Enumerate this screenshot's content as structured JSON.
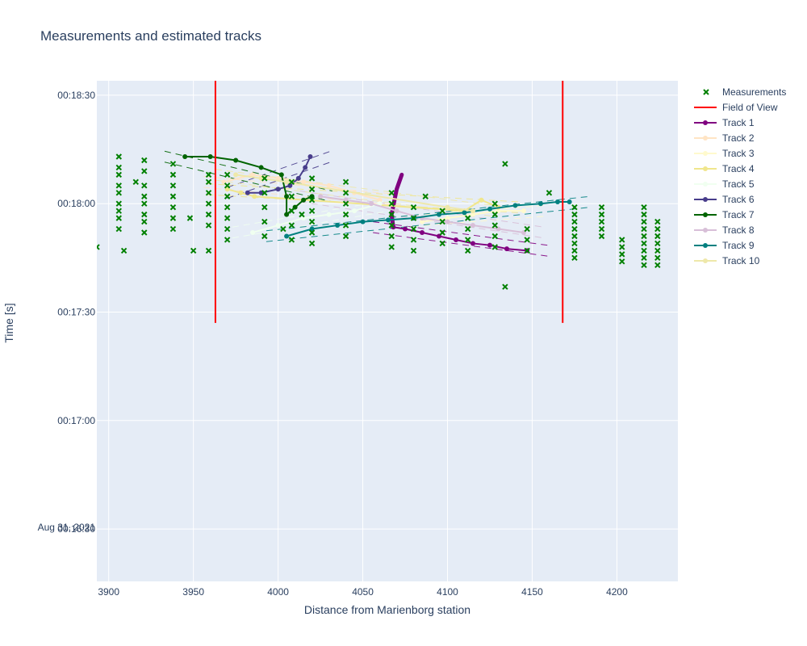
{
  "chart_data": {
    "type": "scatter",
    "title": "Measurements and estimated tracks",
    "xlabel": "Distance from Marienborg station",
    "ylabel": "Time [s]",
    "xlim": [
      3893,
      4236
    ],
    "ylim_seconds": [
      975.5,
      1114
    ],
    "x_ticks": [
      "3900",
      "3950",
      "4000",
      "4050",
      "4100",
      "4150",
      "4200"
    ],
    "y_ticks": [
      "00:16:30",
      "00:17:00",
      "00:17:30",
      "00:18:00",
      "00:18:30"
    ],
    "y_date_label": "Aug 31, 2021",
    "grid": true,
    "legend_position": "right",
    "field_of_view": {
      "name": "Field of View",
      "x": [
        3963,
        4168
      ],
      "y_seconds": [
        1047,
        1114
      ],
      "color": "#ff0000"
    },
    "measurements": {
      "name": "Measurements",
      "color": "#008000",
      "columns": [
        {
          "x": 3906,
          "y": [
            1073,
            1076,
            1078,
            1080,
            1083,
            1085,
            1088,
            1090,
            1093
          ]
        },
        {
          "x": 3921,
          "y": [
            1072,
            1075,
            1077,
            1080,
            1082,
            1085,
            1089,
            1092
          ]
        },
        {
          "x": 3938,
          "y": [
            1073,
            1076,
            1079,
            1082,
            1085,
            1088,
            1091
          ]
        },
        {
          "x": 3959,
          "y": [
            1074,
            1077,
            1080,
            1083,
            1086,
            1088
          ]
        },
        {
          "x": 3970,
          "y": [
            1070,
            1073,
            1076,
            1079,
            1082,
            1085,
            1088
          ]
        },
        {
          "x": 3992,
          "y": [
            1071,
            1075,
            1079,
            1083,
            1087
          ]
        },
        {
          "x": 4008,
          "y": [
            1070,
            1074,
            1078,
            1082,
            1086
          ]
        },
        {
          "x": 4020,
          "y": [
            1069,
            1072,
            1075,
            1078,
            1081,
            1084,
            1087
          ]
        },
        {
          "x": 4040,
          "y": [
            1071,
            1074,
            1077,
            1080,
            1083,
            1086
          ]
        },
        {
          "x": 4067,
          "y": [
            1068,
            1071,
            1074,
            1077,
            1080,
            1083
          ]
        },
        {
          "x": 4080,
          "y": [
            1067,
            1070,
            1073,
            1076,
            1079
          ]
        },
        {
          "x": 4097,
          "y": [
            1069,
            1072,
            1075,
            1078
          ]
        },
        {
          "x": 4112,
          "y": [
            1067,
            1070,
            1073,
            1076
          ]
        },
        {
          "x": 4128,
          "y": [
            1068,
            1071,
            1074,
            1077,
            1080
          ]
        },
        {
          "x": 4147,
          "y": [
            1067,
            1070,
            1073
          ]
        },
        {
          "x": 4175,
          "y": [
            1065,
            1067,
            1069,
            1071,
            1073,
            1075,
            1077,
            1079
          ]
        },
        {
          "x": 4191,
          "y": [
            1071,
            1073,
            1075,
            1077,
            1079
          ]
        },
        {
          "x": 4203,
          "y": [
            1064,
            1066,
            1068,
            1070
          ]
        },
        {
          "x": 4216,
          "y": [
            1063,
            1065,
            1067,
            1069,
            1071,
            1073,
            1075,
            1077,
            1079
          ]
        },
        {
          "x": 4224,
          "y": [
            1063,
            1065,
            1067,
            1069,
            1071,
            1073,
            1075
          ]
        }
      ],
      "extra_points": [
        {
          "x": 3893,
          "y": 1068
        },
        {
          "x": 3909,
          "y": 1067
        },
        {
          "x": 3948,
          "y": 1076
        },
        {
          "x": 3950,
          "y": 1067
        },
        {
          "x": 3959,
          "y": 1067
        },
        {
          "x": 3916,
          "y": 1086
        },
        {
          "x": 4134,
          "y": 1091
        },
        {
          "x": 4134,
          "y": 1057
        },
        {
          "x": 4003,
          "y": 1073
        },
        {
          "x": 4014,
          "y": 1077
        },
        {
          "x": 4087,
          "y": 1082
        },
        {
          "x": 4160,
          "y": 1083
        }
      ]
    },
    "tracks": [
      {
        "name": "Track 1",
        "color": "#800080",
        "points": [
          [
            4068,
            1073.5
          ],
          [
            4075,
            1073
          ],
          [
            4085,
            1072
          ],
          [
            4095,
            1071
          ],
          [
            4105,
            1070
          ],
          [
            4115,
            1069
          ],
          [
            4125,
            1068.5
          ],
          [
            4135,
            1067.5
          ],
          [
            4147,
            1067
          ]
        ],
        "hook": [
          [
            4068,
            1073.5
          ],
          [
            4067,
            1077
          ],
          [
            4070,
            1084
          ],
          [
            4073,
            1088
          ]
        ]
      },
      {
        "name": "Track 2",
        "color": "#ffe4c4",
        "points": [
          [
            3968,
            1086
          ],
          [
            3985,
            1088
          ],
          [
            4000,
            1087
          ],
          [
            4015,
            1086
          ],
          [
            4030,
            1085
          ],
          [
            4045,
            1083
          ],
          [
            4060,
            1081
          ]
        ]
      },
      {
        "name": "Track 3",
        "color": "#fffacd",
        "points": [
          [
            4085,
            1075
          ],
          [
            4100,
            1076
          ],
          [
            4115,
            1077
          ],
          [
            4130,
            1078
          ],
          [
            4145,
            1078
          ]
        ]
      },
      {
        "name": "Track 4",
        "color": "#f0e68c",
        "points": [
          [
            3970,
            1084
          ],
          [
            3978,
            1083
          ],
          [
            3986,
            1082
          ],
          [
            4110,
            1078
          ],
          [
            4120,
            1081
          ],
          [
            4130,
            1079
          ]
        ]
      },
      {
        "name": "Track 5",
        "color": "#f0fff0",
        "points": [
          [
            3985,
            1072
          ],
          [
            4000,
            1074
          ],
          [
            4015,
            1076
          ],
          [
            4030,
            1077
          ],
          [
            4045,
            1078
          ],
          [
            4060,
            1080
          ]
        ]
      },
      {
        "name": "Track 6",
        "color": "#483d8b",
        "points": [
          [
            3982,
            1083
          ],
          [
            3990,
            1083
          ],
          [
            4000,
            1084
          ],
          [
            4007,
            1085
          ],
          [
            4012,
            1087
          ],
          [
            4016,
            1090
          ],
          [
            4019,
            1093
          ]
        ]
      },
      {
        "name": "Track 7",
        "color": "#006400",
        "points": [
          [
            3945,
            1093
          ],
          [
            3960,
            1093
          ],
          [
            3975,
            1092
          ],
          [
            3990,
            1090
          ],
          [
            4002,
            1088
          ],
          [
            4005,
            1082
          ],
          [
            4005,
            1077
          ],
          [
            4010,
            1079
          ],
          [
            4015,
            1081
          ],
          [
            4020,
            1082
          ]
        ]
      },
      {
        "name": "Track 8",
        "color": "#d8bfd8",
        "points": [
          [
            4025,
            1082
          ],
          [
            4040,
            1081
          ],
          [
            4055,
            1080
          ],
          [
            4070,
            1078
          ],
          [
            4085,
            1076
          ],
          [
            4100,
            1075
          ],
          [
            4115,
            1074
          ],
          [
            4130,
            1073
          ],
          [
            4145,
            1072
          ]
        ]
      },
      {
        "name": "Track 9",
        "color": "#008080",
        "points": [
          [
            4005,
            1071
          ],
          [
            4020,
            1073
          ],
          [
            4035,
            1074
          ],
          [
            4050,
            1075
          ],
          [
            4065,
            1075.5
          ],
          [
            4080,
            1076
          ],
          [
            4095,
            1077
          ],
          [
            4110,
            1077.5
          ],
          [
            4125,
            1078.5
          ],
          [
            4140,
            1079.5
          ],
          [
            4155,
            1080
          ],
          [
            4165,
            1080.5
          ],
          [
            4172,
            1080.5
          ]
        ]
      },
      {
        "name": "Track 10",
        "color": "#eee8aa",
        "points": [
          [
            3975,
            1088
          ],
          [
            3990,
            1087
          ],
          [
            4005,
            1086
          ],
          [
            4100,
            1079
          ],
          [
            4115,
            1078
          ]
        ]
      }
    ]
  }
}
